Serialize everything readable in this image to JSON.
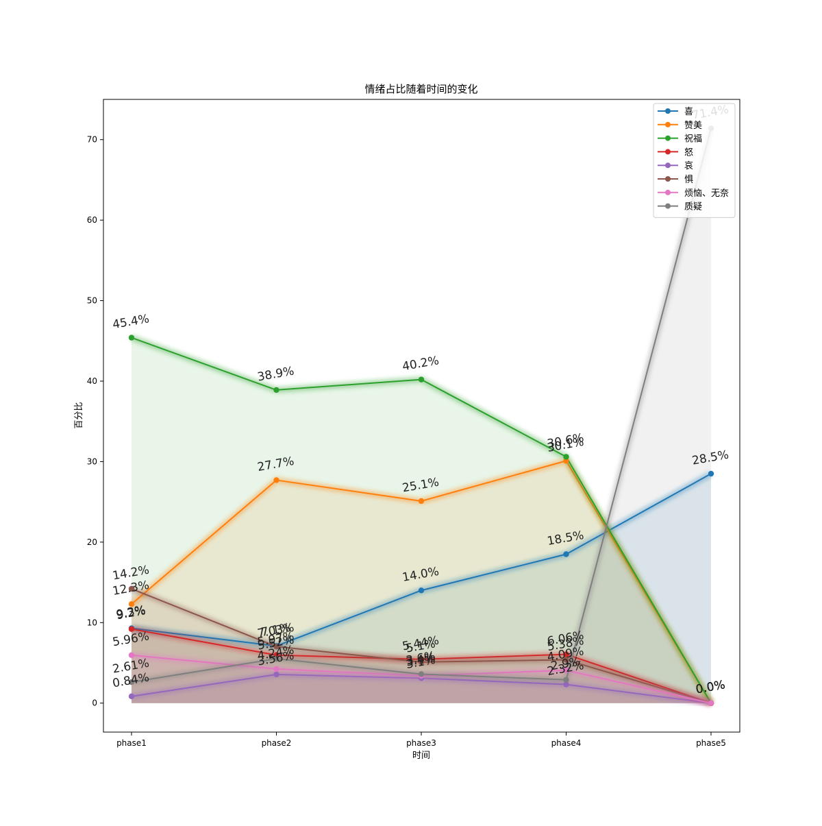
{
  "chart_data": {
    "type": "area",
    "title": "情绪占比随着时间的变化",
    "xlabel": "时间",
    "ylabel": "百分比",
    "categories": [
      "phase1",
      "phase2",
      "phase3",
      "phase4",
      "phase5"
    ],
    "ylim": [
      -3.6,
      75
    ],
    "yticks": [
      0,
      10,
      20,
      30,
      40,
      50,
      60,
      70
    ],
    "grid": false,
    "legend_position": "top-right",
    "series": [
      {
        "name": "喜",
        "color": "#1f77b4",
        "values": [
          9.3,
          7.1,
          14.0,
          18.5,
          28.5
        ],
        "labels": [
          "9.3%",
          "7.1%",
          "14.0%",
          "18.5%",
          "28.5%"
        ]
      },
      {
        "name": "赞美",
        "color": "#ff7f0e",
        "values": [
          12.3,
          27.7,
          25.1,
          30.1,
          0.0
        ],
        "labels": [
          "12.3%",
          "27.7%",
          "25.1%",
          "30.1%",
          "0.0%"
        ]
      },
      {
        "name": "祝福",
        "color": "#2ca02c",
        "values": [
          45.4,
          38.9,
          40.2,
          30.6,
          0.0
        ],
        "labels": [
          "45.4%",
          "38.9%",
          "40.2%",
          "30.6%",
          "0.0%"
        ]
      },
      {
        "name": "怒",
        "color": "#d62728",
        "values": [
          9.2,
          5.97,
          5.44,
          6.06,
          0.0
        ],
        "labels": [
          "9.2%",
          "5.97%",
          "5.44%",
          "6.06%",
          "0.0%"
        ]
      },
      {
        "name": "哀",
        "color": "#9467bd",
        "values": [
          0.84,
          3.56,
          3.1,
          2.32,
          0.0
        ],
        "labels": [
          "0.84%",
          "3.56%",
          "3.1%",
          "2.32%",
          "0.0%"
        ]
      },
      {
        "name": "惧",
        "color": "#8c564b",
        "values": [
          14.2,
          7.03,
          5.1,
          5.38,
          0.0
        ],
        "labels": [
          "14.2%",
          "7.03%",
          "5.1%",
          "5.38%",
          "0.0%"
        ]
      },
      {
        "name": "烦恼、无奈",
        "color": "#e377c2",
        "values": [
          5.96,
          4.24,
          3.4,
          4.09,
          0.0
        ],
        "labels": [
          "5.96%",
          "4.24%",
          "3.4%",
          "4.09%",
          "0.0%"
        ]
      },
      {
        "name": "质疑",
        "color": "#7f7f7f",
        "values": [
          2.61,
          5.52,
          3.6,
          2.9,
          71.4
        ],
        "labels": [
          "2.61%",
          "5.52%",
          "3.6%",
          "2.9%",
          "71.4%"
        ]
      }
    ]
  }
}
